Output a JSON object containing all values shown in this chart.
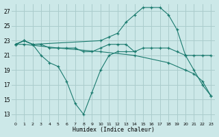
{
  "xlabel": "Humidex (Indice chaleur)",
  "bg_color": "#cce8e8",
  "grid_color": "#aacccc",
  "line_color": "#1a7a6e",
  "xlim": [
    -0.5,
    23.5
  ],
  "ylim": [
    12,
    28
  ],
  "yticks": [
    13,
    15,
    17,
    19,
    21,
    23,
    25,
    27
  ],
  "xticks": [
    0,
    1,
    2,
    3,
    4,
    5,
    6,
    7,
    8,
    9,
    10,
    11,
    12,
    13,
    14,
    15,
    16,
    17,
    18,
    19,
    20,
    21,
    22,
    23
  ],
  "series": [
    {
      "x": [
        0,
        1,
        2,
        10,
        11,
        12,
        13,
        14,
        15,
        16,
        17,
        18,
        19,
        20,
        21,
        22,
        23
      ],
      "y": [
        22.5,
        23.0,
        22.5,
        23.0,
        23.5,
        24.0,
        25.5,
        26.5,
        27.5,
        27.5,
        27.5,
        26.5,
        24.5,
        21.0,
        19.0,
        17.0,
        15.5
      ]
    },
    {
      "x": [
        0,
        1,
        2,
        3,
        4,
        5,
        6,
        7,
        8,
        9,
        10,
        11,
        12,
        13,
        14,
        15,
        16,
        17,
        18,
        19,
        20,
        21,
        22,
        23
      ],
      "y": [
        22.5,
        23.0,
        22.5,
        22.5,
        22.0,
        22.0,
        22.0,
        22.0,
        21.5,
        21.5,
        22.0,
        22.5,
        22.5,
        22.5,
        21.5,
        22.0,
        22.0,
        22.0,
        22.0,
        21.5,
        21.0,
        21.0,
        21.0,
        21.0
      ]
    },
    {
      "x": [
        0,
        1,
        2,
        3,
        4,
        5,
        6,
        7,
        8,
        9,
        10,
        11,
        12,
        13,
        14
      ],
      "y": [
        22.5,
        23.0,
        22.5,
        21.0,
        20.0,
        19.5,
        17.5,
        14.5,
        13.0,
        16.0,
        19.0,
        21.0,
        21.5,
        21.5,
        21.5
      ]
    },
    {
      "x": [
        0,
        1,
        5,
        10,
        14,
        18,
        20,
        21,
        22,
        23
      ],
      "y": [
        22.5,
        22.5,
        22.0,
        21.5,
        21.0,
        20.0,
        19.0,
        18.5,
        17.5,
        15.5
      ]
    }
  ]
}
